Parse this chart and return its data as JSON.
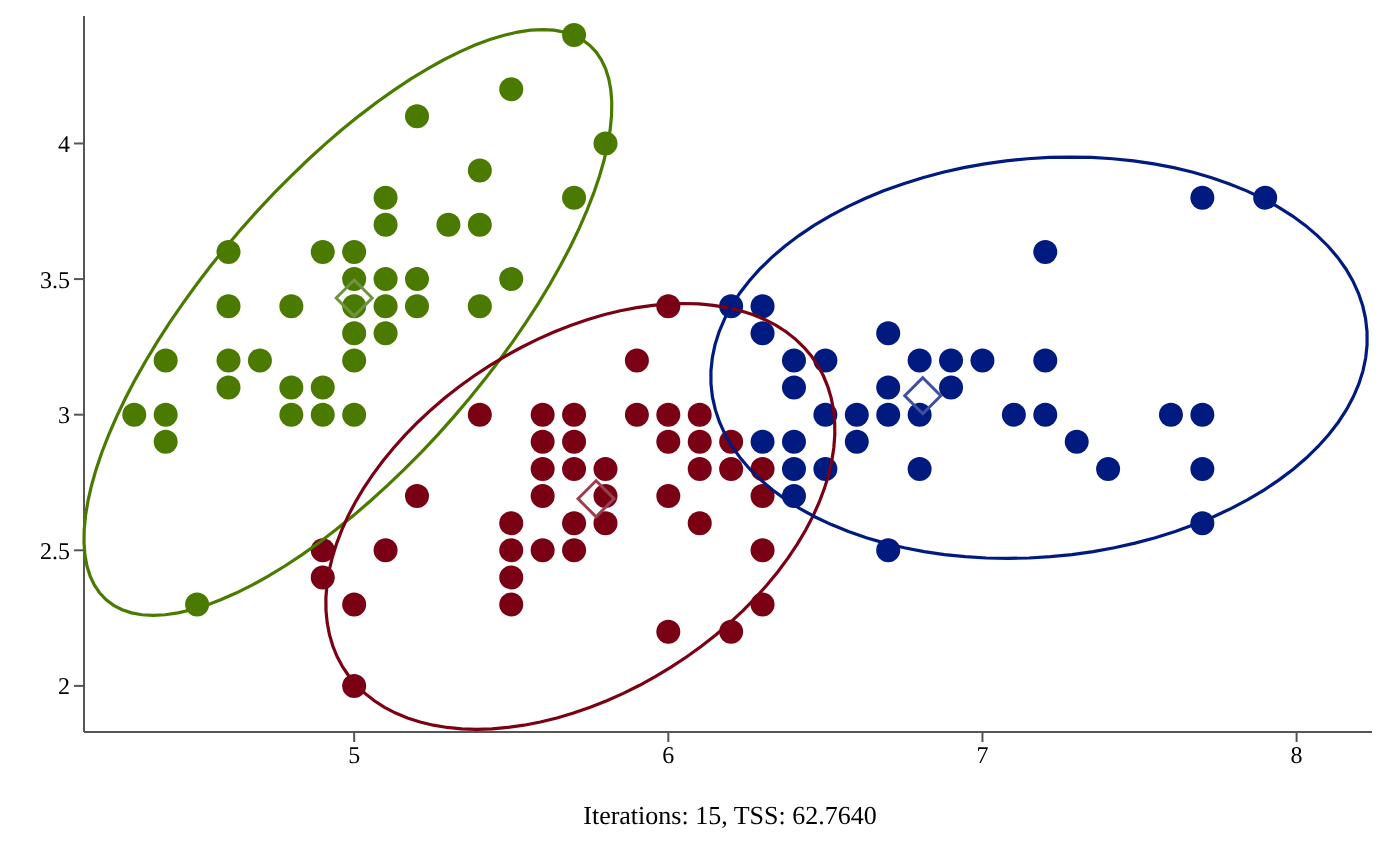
{
  "chart_data": {
    "type": "scatter",
    "annotations": [
      "Iterations: 15, TSS: 62.7640"
    ],
    "xlim": [
      4.14,
      8.24
    ],
    "ylim": [
      1.83,
      4.47
    ],
    "xticks": [
      5,
      6,
      7,
      8
    ],
    "yticks": [
      2,
      2.5,
      3,
      3.5,
      4
    ],
    "grid": false,
    "legend": false,
    "series": [
      {
        "marker": "circle",
        "color": "#4a7a00",
        "x": [
          5.7,
          5.5,
          5.2,
          5.8,
          5.4,
          5.1,
          5.7,
          5.1,
          5.3,
          5.4,
          4.6,
          4.9,
          5.0,
          5.0,
          5.1,
          5.2,
          5.5,
          4.6,
          4.8,
          5.0,
          5.1,
          5.2,
          5.4,
          5.0,
          5.1,
          4.4,
          4.6,
          4.7,
          5.0,
          4.6,
          4.8,
          4.9,
          4.3,
          4.4,
          4.8,
          4.9,
          5.0,
          4.4,
          4.5
        ],
        "values": [
          4.4,
          4.2,
          4.1,
          4.0,
          3.9,
          3.8,
          3.8,
          3.7,
          3.7,
          3.7,
          3.6,
          3.6,
          3.6,
          3.5,
          3.5,
          3.5,
          3.5,
          3.4,
          3.4,
          3.4,
          3.4,
          3.4,
          3.4,
          3.3,
          3.3,
          3.2,
          3.2,
          3.2,
          3.2,
          3.1,
          3.1,
          3.1,
          3.0,
          3.0,
          3.0,
          3.0,
          3.0,
          2.9,
          2.3
        ]
      },
      {
        "marker": "circle",
        "color": "#7a0014",
        "x": [
          6.0,
          5.9,
          5.4,
          5.6,
          5.7,
          5.9,
          6.0,
          6.1,
          5.6,
          5.7,
          6.0,
          6.1,
          6.2,
          5.6,
          5.7,
          5.8,
          6.1,
          6.2,
          6.3,
          5.2,
          5.6,
          5.8,
          6.0,
          6.3,
          5.5,
          5.7,
          5.8,
          6.1,
          4.9,
          5.1,
          5.5,
          5.6,
          5.7,
          6.3,
          4.9,
          5.5,
          5.0,
          5.5,
          6.3,
          6.0,
          6.2,
          5.0
        ],
        "values": [
          3.4,
          3.2,
          3.0,
          3.0,
          3.0,
          3.0,
          3.0,
          3.0,
          2.9,
          2.9,
          2.9,
          2.9,
          2.9,
          2.8,
          2.8,
          2.8,
          2.8,
          2.8,
          2.8,
          2.7,
          2.7,
          2.7,
          2.7,
          2.7,
          2.6,
          2.6,
          2.6,
          2.6,
          2.5,
          2.5,
          2.5,
          2.5,
          2.5,
          2.5,
          2.4,
          2.4,
          2.3,
          2.3,
          2.3,
          2.2,
          2.2,
          2.0
        ]
      },
      {
        "marker": "circle",
        "color": "#001a80",
        "x": [
          7.7,
          7.9,
          7.2,
          6.2,
          6.3,
          6.3,
          6.7,
          6.4,
          6.5,
          6.8,
          6.9,
          7.0,
          7.2,
          6.4,
          6.7,
          6.9,
          6.5,
          6.6,
          6.7,
          6.8,
          7.1,
          7.2,
          7.6,
          7.7,
          6.3,
          6.4,
          6.6,
          7.3,
          6.4,
          6.5,
          6.8,
          7.4,
          7.7,
          6.4,
          7.7,
          6.7
        ],
        "values": [
          3.8,
          3.8,
          3.6,
          3.4,
          3.4,
          3.3,
          3.3,
          3.2,
          3.2,
          3.2,
          3.2,
          3.2,
          3.2,
          3.1,
          3.1,
          3.1,
          3.0,
          3.0,
          3.0,
          3.0,
          3.0,
          3.0,
          3.0,
          3.0,
          2.9,
          2.9,
          2.9,
          2.9,
          2.8,
          2.8,
          2.8,
          2.8,
          2.8,
          2.7,
          2.6,
          2.5
        ]
      },
      {
        "marker": "diamond",
        "color": "#6f9440",
        "x": [
          5.0
        ],
        "values": [
          3.43
        ]
      },
      {
        "marker": "diamond",
        "color": "#9a4050",
        "x": [
          5.77
        ],
        "values": [
          2.69
        ]
      },
      {
        "marker": "diamond",
        "color": "#4050a0",
        "x": [
          6.81
        ],
        "values": [
          3.07
        ]
      }
    ]
  }
}
